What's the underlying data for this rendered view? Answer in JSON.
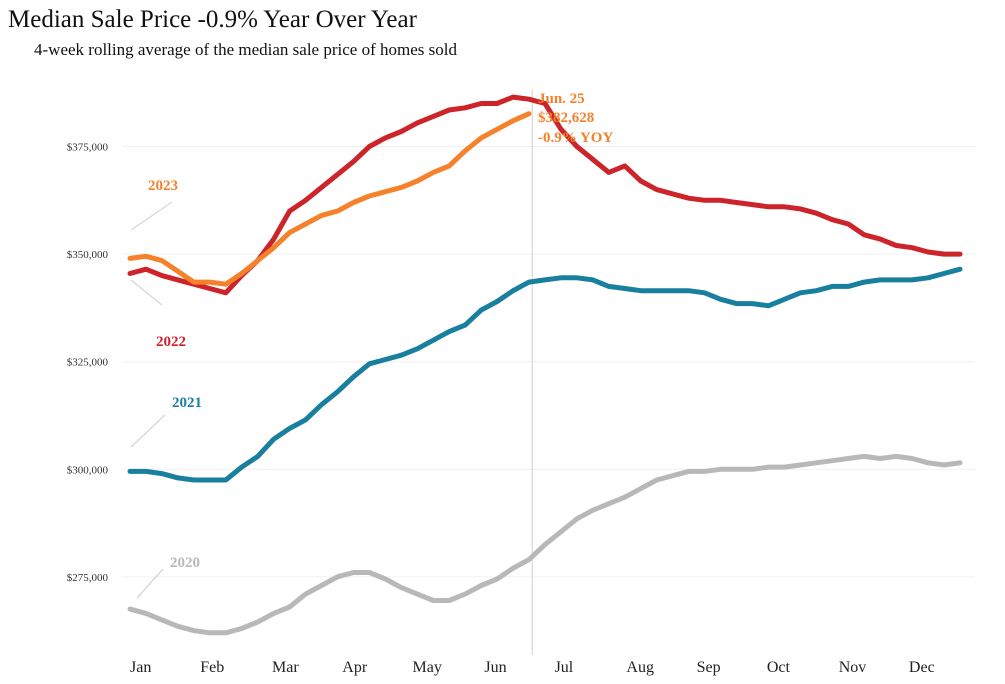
{
  "header": {
    "title": "Median Sale Price -0.9% Year Over Year",
    "subtitle": "4-week rolling average of the median sale price of homes sold"
  },
  "chart_data": {
    "type": "line",
    "title": "Median Sale Price -0.9% Year Over Year",
    "subtitle": "4-week rolling average of the median sale price of homes sold",
    "xlabel": "",
    "ylabel": "",
    "x_range_weeks": [
      0,
      52
    ],
    "ylim": [
      258000,
      390000
    ],
    "y_ticks": [
      275000,
      300000,
      325000,
      350000,
      375000
    ],
    "y_tick_labels": [
      "$275,000",
      "$300,000",
      "$325,000",
      "$350,000",
      "$375,000"
    ],
    "month_labels": [
      "Jan",
      "Feb",
      "Mar",
      "Apr",
      "May",
      "Jun",
      "Jul",
      "Aug",
      "Sep",
      "Oct",
      "Nov",
      "Dec"
    ],
    "month_positions_weeks": [
      0,
      4.4,
      8.9,
      13.3,
      17.7,
      22.2,
      26.6,
      31.1,
      35.5,
      39.9,
      44.4,
      48.8
    ],
    "grid": true,
    "series": [
      {
        "name": "2020",
        "color": "#b8b8b8",
        "x": [
          0,
          1,
          2,
          3,
          4,
          5,
          6,
          7,
          8,
          9,
          10,
          11,
          12,
          13,
          14,
          15,
          16,
          17,
          18,
          19,
          20,
          21,
          22,
          23,
          24,
          25,
          26,
          27,
          28,
          29,
          30,
          31,
          32,
          33,
          34,
          35,
          36,
          37,
          38,
          39,
          40,
          41,
          42,
          43,
          44,
          45,
          46,
          47,
          48,
          49,
          50,
          51,
          52
        ],
        "values": [
          267500,
          266500,
          265000,
          263500,
          262500,
          262000,
          262000,
          263000,
          264500,
          266500,
          268000,
          271000,
          273000,
          275000,
          276000,
          276000,
          274500,
          272500,
          271000,
          269500,
          269500,
          271000,
          273000,
          274500,
          277000,
          279000,
          282500,
          285500,
          288500,
          290500,
          292000,
          293500,
          295500,
          297500,
          298500,
          299500,
          299500,
          300000,
          300000,
          300000,
          300500,
          300500,
          301000,
          301500,
          302000,
          302500,
          303000,
          302500,
          303000,
          302500,
          301500,
          301000,
          301500
        ]
      },
      {
        "name": "2021",
        "color": "#18809e",
        "x": [
          0,
          1,
          2,
          3,
          4,
          5,
          6,
          7,
          8,
          9,
          10,
          11,
          12,
          13,
          14,
          15,
          16,
          17,
          18,
          19,
          20,
          21,
          22,
          23,
          24,
          25,
          26,
          27,
          28,
          29,
          30,
          31,
          32,
          33,
          34,
          35,
          36,
          37,
          38,
          39,
          40,
          41,
          42,
          43,
          44,
          45,
          46,
          47,
          48,
          49,
          50,
          51,
          52
        ],
        "values": [
          299500,
          299500,
          299000,
          298000,
          297500,
          297500,
          297500,
          300500,
          303000,
          307000,
          309500,
          311500,
          315000,
          318000,
          321500,
          324500,
          325500,
          326500,
          328000,
          330000,
          332000,
          333500,
          337000,
          339000,
          341500,
          343500,
          344000,
          344500,
          344500,
          344000,
          342500,
          342000,
          341500,
          341500,
          341500,
          341500,
          341000,
          339500,
          338500,
          338500,
          338000,
          339500,
          341000,
          341500,
          342500,
          342500,
          343500,
          344000,
          344000,
          344000,
          344500,
          345500,
          346500
        ]
      },
      {
        "name": "2022",
        "color": "#cc2429",
        "x": [
          0,
          1,
          2,
          3,
          4,
          5,
          6,
          7,
          8,
          9,
          10,
          11,
          12,
          13,
          14,
          15,
          16,
          17,
          18,
          19,
          20,
          21,
          22,
          23,
          24,
          25,
          26,
          27,
          28,
          29,
          30,
          31,
          32,
          33,
          34,
          35,
          36,
          37,
          38,
          39,
          40,
          41,
          42,
          43,
          44,
          45,
          46,
          47,
          48,
          49,
          50,
          51,
          52
        ],
        "values": [
          345500,
          346500,
          345000,
          344000,
          343000,
          342000,
          341000,
          345000,
          348500,
          353500,
          360000,
          362500,
          365500,
          368500,
          371500,
          375000,
          377000,
          378500,
          380500,
          382000,
          383500,
          384000,
          385000,
          385000,
          386500,
          386000,
          385000,
          379000,
          375000,
          372000,
          369000,
          370500,
          367000,
          365000,
          364000,
          363000,
          362500,
          362500,
          362000,
          361500,
          361000,
          361000,
          360500,
          359500,
          358000,
          357000,
          354500,
          353500,
          352000,
          351500,
          350500,
          350000,
          350000
        ]
      },
      {
        "name": "2023",
        "color": "#f5822b",
        "x": [
          0,
          1,
          2,
          3,
          4,
          5,
          6,
          7,
          8,
          9,
          10,
          11,
          12,
          13,
          14,
          15,
          16,
          17,
          18,
          19,
          20,
          21,
          22,
          23,
          24,
          25
        ],
        "values": [
          349000,
          349500,
          348500,
          346000,
          343500,
          343500,
          343000,
          345500,
          348500,
          351500,
          355000,
          357000,
          359000,
          360000,
          362000,
          363500,
          364500,
          365500,
          367000,
          369000,
          370500,
          374000,
          377000,
          379000,
          381000,
          382628
        ]
      }
    ],
    "annotations": [
      {
        "text": "Jun. 25",
        "series": "2023",
        "week": 25
      },
      {
        "text": "$382,628",
        "series": "2023",
        "week": 25
      },
      {
        "text": "-0.9% YOY",
        "series": "2023",
        "week": 25
      }
    ],
    "reference_line_week": 25.2
  }
}
